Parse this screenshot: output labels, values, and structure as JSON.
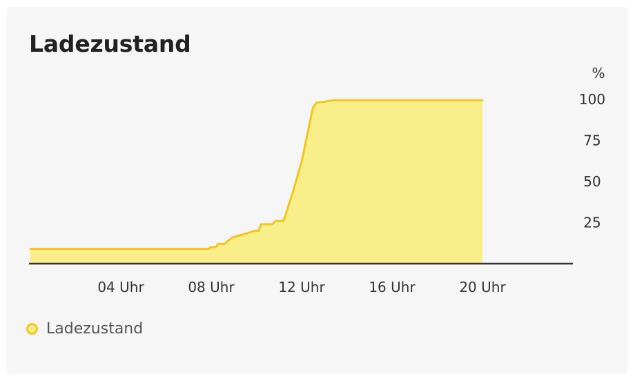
{
  "chart_data": {
    "type": "area",
    "title": "Ladezustand",
    "ylabel": "%",
    "xlabel": "",
    "x_ticks": [
      {
        "hour": 4,
        "label": "04 Uhr"
      },
      {
        "hour": 8,
        "label": "08 Uhr"
      },
      {
        "hour": 12,
        "label": "12 Uhr"
      },
      {
        "hour": 16,
        "label": "16 Uhr"
      },
      {
        "hour": 20,
        "label": "20 Uhr"
      }
    ],
    "y_ticks": [
      {
        "value": 25,
        "label": "25"
      },
      {
        "value": 50,
        "label": "50"
      },
      {
        "value": 75,
        "label": "75"
      },
      {
        "value": 100,
        "label": "100"
      }
    ],
    "xlim": [
      0,
      24
    ],
    "ylim": [
      0,
      100
    ],
    "legend_position": "bottom-left",
    "grid": false,
    "series": [
      {
        "name": "Ladezustand",
        "line_color": "#f4c51c",
        "fill_color": "#f9ef8a",
        "points": [
          [
            0.0,
            9
          ],
          [
            7.9,
            9
          ],
          [
            7.95,
            10
          ],
          [
            8.2,
            10
          ],
          [
            8.3,
            12
          ],
          [
            8.6,
            12
          ],
          [
            8.75,
            14
          ],
          [
            8.95,
            16
          ],
          [
            9.2,
            17
          ],
          [
            9.45,
            18
          ],
          [
            9.7,
            19
          ],
          [
            9.9,
            20
          ],
          [
            10.1,
            20
          ],
          [
            10.2,
            24
          ],
          [
            10.7,
            24
          ],
          [
            10.85,
            26
          ],
          [
            11.2,
            26
          ],
          [
            11.6,
            43
          ],
          [
            12.0,
            62
          ],
          [
            12.2,
            75
          ],
          [
            12.5,
            95
          ],
          [
            12.65,
            98
          ],
          [
            12.95,
            98.5
          ],
          [
            13.4,
            99.5
          ],
          [
            20.0,
            99.5
          ]
        ]
      }
    ]
  },
  "legend": {
    "label": "Ladezustand"
  }
}
